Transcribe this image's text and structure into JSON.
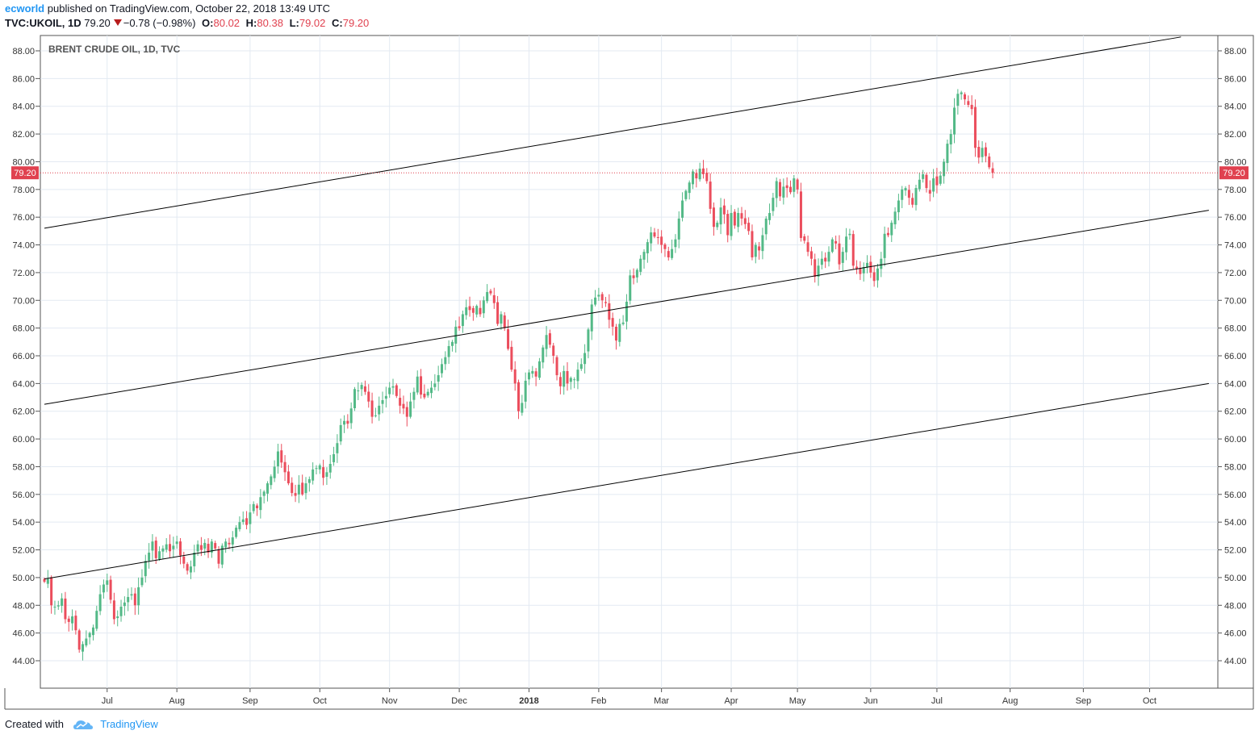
{
  "header": {
    "author": "ecworld",
    "published_text": "published on TradingView.com, October 22, 2018 13:49 UTC",
    "symbol": "TVC:UKOIL, 1D",
    "last": "79.20",
    "change": "−0.78 (−0.98%)",
    "o_label": "O:",
    "o_value": "80.02",
    "h_label": "H:",
    "h_value": "80.38",
    "l_label": "L:",
    "l_value": "79.02",
    "c_label": "C:",
    "c_value": "79.20"
  },
  "footer": {
    "created_with": "Created with",
    "brand": "TradingView"
  },
  "colors": {
    "up": "#53b987",
    "down": "#eb4d5c",
    "grid": "#e3eaf2",
    "price_label_bg": "#e0414f",
    "trendline": "#000000"
  },
  "chart_data": {
    "type": "candlestick",
    "title": "BRENT CRUDE OIL, 1D, TVC",
    "current_price": 79.2,
    "current_price_label": "79.20",
    "y_range": [
      42,
      89
    ],
    "y_ticks": [
      "88.00",
      "86.00",
      "84.00",
      "82.00",
      "80.00",
      "78.00",
      "76.00",
      "74.00",
      "72.00",
      "70.00",
      "68.00",
      "66.00",
      "64.00",
      "62.00",
      "60.00",
      "58.00",
      "56.00",
      "54.00",
      "52.00",
      "50.00",
      "48.00",
      "46.00",
      "44.00"
    ],
    "x_range_days": [
      0,
      334
    ],
    "x_ticks": [
      {
        "label": "Jul",
        "day": 18,
        "bold": false
      },
      {
        "label": "Aug",
        "day": 38,
        "bold": false
      },
      {
        "label": "Sep",
        "day": 59,
        "bold": false
      },
      {
        "label": "Oct",
        "day": 79,
        "bold": false
      },
      {
        "label": "Nov",
        "day": 99,
        "bold": false
      },
      {
        "label": "Dec",
        "day": 119,
        "bold": false
      },
      {
        "label": "2018",
        "day": 139,
        "bold": true
      },
      {
        "label": "Feb",
        "day": 159,
        "bold": false
      },
      {
        "label": "Mar",
        "day": 177,
        "bold": false
      },
      {
        "label": "Apr",
        "day": 197,
        "bold": false
      },
      {
        "label": "May",
        "day": 216,
        "bold": false
      },
      {
        "label": "Jun",
        "day": 237,
        "bold": false
      },
      {
        "label": "Jul",
        "day": 256,
        "bold": false
      },
      {
        "label": "Aug",
        "day": 277,
        "bold": false
      },
      {
        "label": "Sep",
        "day": 298,
        "bold": false
      },
      {
        "label": "Oct",
        "day": 317,
        "bold": false
      }
    ],
    "trend_lines": [
      {
        "name": "upper",
        "p1": [
          0,
          75.2
        ],
        "p2": [
          326,
          89.0
        ]
      },
      {
        "name": "middle",
        "p1": [
          0,
          62.5
        ],
        "p2": [
          334,
          76.5
        ]
      },
      {
        "name": "lower",
        "p1": [
          0,
          49.9
        ],
        "p2": [
          334,
          64.0
        ]
      }
    ],
    "closes": [
      49.7,
      49.9,
      48.0,
      47.9,
      48.0,
      48.5,
      47.0,
      46.8,
      47.2,
      46.2,
      44.8,
      45.2,
      45.6,
      46.0,
      46.4,
      47.6,
      48.8,
      49.5,
      49.8,
      48.4,
      47.0,
      47.2,
      47.9,
      48.2,
      48.6,
      48.8,
      48.0,
      49.3,
      50.0,
      51.2,
      51.8,
      52.6,
      51.4,
      51.9,
      52.1,
      52.4,
      51.9,
      52.3,
      52.6,
      51.6,
      51.0,
      50.5,
      50.8,
      51.8,
      52.4,
      52.0,
      52.5,
      51.8,
      52.6,
      52.1,
      51.0,
      52.3,
      52.6,
      52.4,
      52.9,
      53.6,
      54.0,
      54.2,
      53.8,
      54.7,
      55.3,
      55.0,
      55.8,
      56.2,
      56.8,
      57.3,
      58.0,
      59.1,
      58.3,
      57.6,
      56.8,
      56.1,
      55.9,
      56.7,
      56.0,
      56.8,
      57.1,
      57.8,
      57.9,
      58.1,
      57.2,
      57.6,
      58.2,
      58.9,
      59.7,
      61.0,
      61.3,
      61.1,
      62.2,
      63.6,
      63.5,
      63.9,
      63.4,
      62.7,
      61.6,
      61.7,
      62.4,
      62.8,
      63.1,
      63.7,
      63.8,
      63.1,
      62.4,
      62.2,
      61.6,
      62.7,
      63.4,
      64.5,
      63.2,
      63.0,
      63.4,
      63.7,
      64.0,
      64.6,
      65.4,
      65.9,
      66.7,
      67.0,
      68.1,
      68.0,
      69.0,
      69.5,
      69.3,
      69.1,
      69.6,
      69.0,
      70.0,
      70.6,
      70.5,
      69.8,
      68.3,
      69.0,
      68.0,
      66.5,
      65.0,
      64.0,
      62.0,
      62.6,
      64.2,
      64.8,
      64.9,
      64.5,
      65.6,
      66.6,
      67.5,
      66.8,
      66.0,
      64.6,
      63.8,
      64.9,
      64.0,
      64.4,
      64.3,
      65.0,
      65.4,
      66.2,
      67.9,
      69.7,
      70.2,
      70.4,
      70.0,
      69.8,
      68.6,
      68.1,
      67.1,
      68.3,
      68.4,
      69.9,
      71.8,
      71.6,
      72.2,
      73.0,
      73.5,
      74.2,
      74.9,
      74.6,
      74.5,
      74.0,
      73.7,
      73.1,
      73.7,
      74.4,
      75.9,
      77.2,
      77.9,
      78.5,
      79.3,
      78.8,
      79.5,
      79.1,
      78.6,
      76.6,
      75.3,
      75.6,
      76.7,
      76.2,
      74.7,
      76.3,
      75.4,
      76.3,
      75.9,
      75.5,
      75.0,
      73.1,
      74.0,
      73.6,
      74.7,
      75.9,
      76.3,
      77.4,
      78.6,
      77.5,
      78.2,
      78.1,
      77.8,
      78.8,
      78.0,
      74.5,
      74.3,
      73.5,
      73.0,
      71.7,
      72.5,
      73.0,
      72.8,
      73.5,
      74.4,
      74.1,
      72.6,
      73.5,
      74.6,
      74.8,
      72.5,
      72.3,
      71.9,
      72.4,
      72.7,
      72.0,
      71.4,
      72.3,
      73.0,
      74.8,
      74.7,
      75.6,
      76.4,
      77.2,
      78.0,
      78.1,
      77.4,
      76.9,
      78.1,
      78.7,
      79.1,
      78.1,
      77.7,
      78.8,
      78.3,
      79.0,
      80.0,
      81.3,
      82.0,
      83.9,
      84.9,
      85.0,
      84.5,
      84.1,
      83.8,
      81.0,
      80.3,
      81.0,
      80.4,
      79.6,
      79.2
    ]
  }
}
